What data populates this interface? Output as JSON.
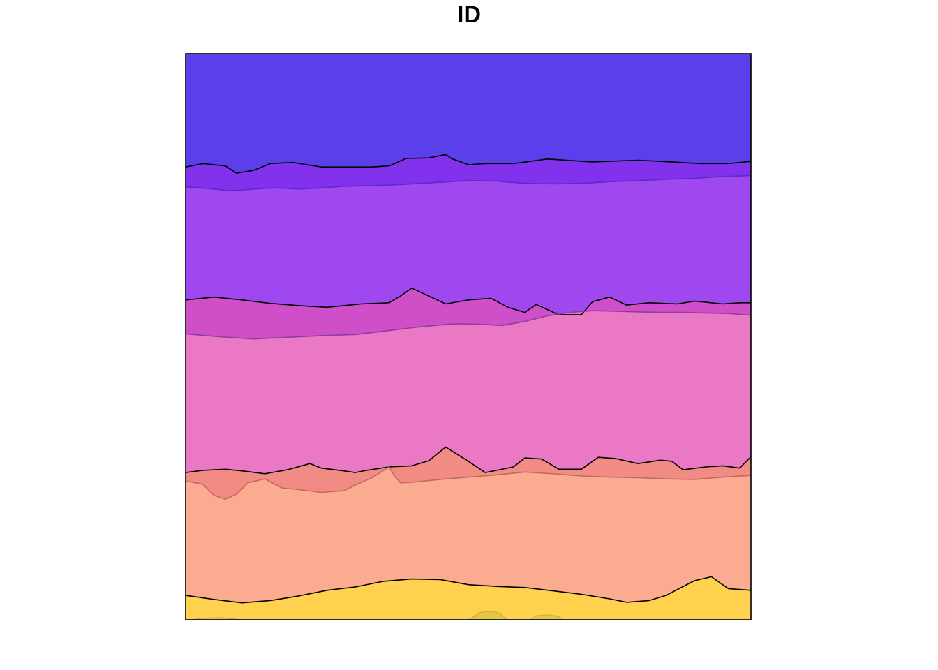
{
  "chart_data": {
    "type": "area",
    "title": "ID",
    "xlabel": "",
    "ylabel": "",
    "xlim": [
      0,
      100
    ],
    "ylim": [
      0,
      100
    ],
    "axes_visible": false,
    "grid": false,
    "legend": "none",
    "layers": [
      {
        "fill": "#5B3FEB",
        "outline": "#000000",
        "lower": {
          "x": [
            0,
            3,
            7,
            9,
            12,
            15,
            19,
            24,
            28,
            33,
            36,
            39,
            43,
            46,
            47,
            50,
            53,
            58,
            64,
            72,
            80,
            86,
            91,
            96,
            100
          ],
          "y": [
            80,
            80.6,
            80.2,
            78.9,
            79.4,
            80.6,
            80.8,
            80.0,
            80.0,
            80.0,
            80.2,
            81.5,
            81.6,
            82.2,
            81.5,
            80.4,
            80.6,
            80.6,
            81.4,
            80.9,
            81.2,
            80.9,
            80.6,
            80.6,
            81.0
          ]
        },
        "upper": {
          "x": [
            0,
            100
          ],
          "y": [
            100,
            100
          ]
        }
      },
      {
        "fill": "#8231EC",
        "outline": "#5A2ACB",
        "lower": {
          "x": [
            0,
            4,
            8,
            12,
            16,
            20,
            24,
            28,
            32,
            36,
            40,
            45,
            50,
            55,
            60,
            65,
            70,
            75,
            80,
            85,
            90,
            95,
            100
          ],
          "y": [
            76.5,
            76.2,
            75.8,
            76.1,
            76.3,
            76.1,
            76.3,
            76.6,
            76.7,
            76.8,
            77.0,
            77.3,
            77.6,
            77.5,
            77.1,
            77.0,
            77.1,
            77.4,
            77.6,
            77.8,
            78.0,
            78.3,
            78.5
          ]
        },
        "upper": {
          "x": [
            0,
            3,
            7,
            9,
            12,
            15,
            19,
            24,
            28,
            33,
            36,
            39,
            43,
            46,
            47,
            50,
            53,
            58,
            64,
            72,
            80,
            86,
            91,
            96,
            100
          ],
          "y": [
            80,
            80.6,
            80.2,
            78.9,
            79.4,
            80.6,
            80.8,
            80.0,
            80.0,
            80.0,
            80.2,
            81.5,
            81.6,
            82.2,
            81.5,
            80.4,
            80.6,
            80.6,
            81.4,
            80.9,
            81.2,
            80.9,
            80.6,
            80.6,
            81.0
          ]
        }
      },
      {
        "fill": "#A048EF",
        "outline": "#000000",
        "lower": {
          "x": [
            0,
            5,
            10,
            15,
            20,
            25,
            28,
            31,
            36,
            38,
            40,
            43,
            46,
            50,
            54,
            57,
            60,
            62,
            66,
            70,
            72,
            75,
            78,
            82,
            87,
            90,
            95,
            98,
            100
          ],
          "y": [
            56.5,
            57.0,
            56.5,
            55.9,
            55.5,
            55.2,
            55.5,
            55.8,
            56.0,
            57.2,
            58.6,
            57.2,
            55.8,
            56.5,
            56.8,
            55.2,
            54.3,
            55.7,
            53.9,
            53.9,
            56.2,
            57.0,
            55.6,
            56.0,
            55.8,
            56.3,
            55.8,
            56.0,
            56.0
          ]
        },
        "upper": {
          "x": [
            0,
            4,
            8,
            12,
            16,
            20,
            24,
            28,
            32,
            36,
            40,
            45,
            50,
            55,
            60,
            65,
            70,
            75,
            80,
            85,
            90,
            95,
            100
          ],
          "y": [
            76.5,
            76.2,
            75.8,
            76.1,
            76.3,
            76.1,
            76.3,
            76.6,
            76.7,
            76.8,
            77.0,
            77.3,
            77.6,
            77.5,
            77.1,
            77.0,
            77.1,
            77.4,
            77.6,
            77.8,
            78.0,
            78.3,
            78.5
          ]
        }
      },
      {
        "fill": "#CF4FC8",
        "outline": "#8E3C9E",
        "lower": {
          "x": [
            0,
            6,
            12,
            18,
            24,
            30,
            36,
            40,
            44,
            48,
            52,
            56,
            60,
            64,
            68,
            72,
            76,
            80,
            84,
            88,
            92,
            96,
            100
          ],
          "y": [
            50.5,
            50.0,
            49.6,
            49.9,
            50.2,
            50.4,
            51.1,
            51.6,
            52.0,
            52.3,
            52.2,
            52.0,
            52.7,
            53.7,
            54.3,
            54.6,
            54.5,
            54.4,
            54.3,
            54.3,
            54.2,
            54.1,
            53.8
          ]
        },
        "upper": {
          "x": [
            0,
            5,
            10,
            15,
            20,
            25,
            28,
            31,
            36,
            38,
            40,
            43,
            46,
            50,
            54,
            57,
            60,
            62,
            66,
            70,
            72,
            75,
            78,
            82,
            87,
            90,
            95,
            98,
            100
          ],
          "y": [
            56.5,
            57.0,
            56.5,
            55.9,
            55.5,
            55.2,
            55.5,
            55.8,
            56.0,
            57.2,
            58.6,
            57.2,
            55.8,
            56.5,
            56.8,
            55.2,
            54.3,
            55.7,
            53.9,
            53.9,
            56.2,
            57.0,
            55.6,
            56.0,
            55.8,
            56.3,
            55.8,
            56.0,
            56.0
          ]
        }
      },
      {
        "fill": "#EA78C5",
        "outline": "#000000",
        "lower": {
          "x": [
            0,
            3,
            7,
            10,
            14,
            18,
            22,
            24,
            28,
            30,
            32,
            36,
            40,
            43,
            46,
            50,
            53,
            58,
            60,
            63,
            66,
            70,
            73,
            76,
            80,
            84,
            86,
            88,
            92,
            95,
            98,
            100
          ],
          "y": [
            26.0,
            26.4,
            26.6,
            26.3,
            25.8,
            26.5,
            27.6,
            26.8,
            26.3,
            26.0,
            26.4,
            27.0,
            27.2,
            28.1,
            30.5,
            28.0,
            26.0,
            27.0,
            28.6,
            28.4,
            26.6,
            26.6,
            28.7,
            28.5,
            27.6,
            28.2,
            28.0,
            26.5,
            27.0,
            27.2,
            26.8,
            28.8
          ]
        },
        "upper": {
          "x": [
            0,
            6,
            12,
            18,
            24,
            30,
            36,
            40,
            44,
            48,
            52,
            56,
            60,
            64,
            68,
            72,
            76,
            80,
            84,
            88,
            92,
            96,
            100
          ],
          "y": [
            50.5,
            50.0,
            49.6,
            49.9,
            50.2,
            50.4,
            51.1,
            51.6,
            52.0,
            52.3,
            52.2,
            52.0,
            52.7,
            53.7,
            54.3,
            54.6,
            54.5,
            54.4,
            54.3,
            54.3,
            54.2,
            54.1,
            53.8
          ]
        }
      },
      {
        "fill": "#F28B83",
        "outline": "#C06A63",
        "lower": {
          "x": [
            0,
            3,
            5,
            7,
            9,
            11,
            14,
            17,
            20,
            24,
            28,
            30,
            33,
            36,
            37,
            38,
            40,
            45,
            50,
            55,
            60,
            65,
            70,
            75,
            80,
            85,
            90,
            95,
            100
          ],
          "y": [
            24.5,
            24.0,
            22.0,
            21.3,
            22.2,
            24.2,
            24.9,
            23.3,
            23.0,
            22.5,
            22.8,
            23.8,
            25.1,
            27.0,
            25.3,
            24.2,
            24.3,
            24.8,
            25.2,
            25.6,
            26.1,
            25.8,
            25.4,
            25.2,
            25.1,
            24.9,
            24.8,
            25.2,
            25.5
          ]
        },
        "upper": {
          "x": [
            0,
            3,
            7,
            10,
            14,
            18,
            22,
            24,
            28,
            30,
            32,
            36,
            40,
            43,
            46,
            50,
            53,
            58,
            60,
            63,
            66,
            70,
            73,
            76,
            80,
            84,
            86,
            88,
            92,
            95,
            98,
            100
          ],
          "y": [
            26.0,
            26.4,
            26.6,
            26.3,
            25.8,
            26.5,
            27.6,
            26.8,
            26.3,
            26.0,
            26.4,
            27.0,
            27.2,
            28.1,
            30.5,
            28.0,
            26.0,
            27.0,
            28.6,
            28.4,
            26.6,
            26.6,
            28.7,
            28.5,
            27.6,
            28.2,
            28.0,
            26.5,
            27.0,
            27.2,
            26.8,
            28.8
          ]
        }
      },
      {
        "fill": "#FBAB90",
        "outline": "#000000",
        "lower": {
          "x": [
            0,
            5,
            10,
            15,
            20,
            25,
            30,
            35,
            40,
            45,
            50,
            55,
            60,
            65,
            70,
            75,
            78,
            82,
            85,
            90,
            93,
            96,
            100
          ],
          "y": [
            4.3,
            3.6,
            3.0,
            3.4,
            4.2,
            5.2,
            5.8,
            6.8,
            7.2,
            7.1,
            6.2,
            5.9,
            5.7,
            5.1,
            4.5,
            3.7,
            3.1,
            3.4,
            4.3,
            6.9,
            7.6,
            5.5,
            5.2
          ]
        },
        "upper": {
          "x": [
            0,
            3,
            5,
            7,
            9,
            11,
            14,
            17,
            20,
            24,
            28,
            30,
            33,
            36,
            37,
            38,
            40,
            45,
            50,
            55,
            60,
            65,
            70,
            75,
            80,
            85,
            90,
            95,
            100
          ],
          "y": [
            24.5,
            24.0,
            22.0,
            21.3,
            22.2,
            24.2,
            24.9,
            23.3,
            23.0,
            22.5,
            22.8,
            23.8,
            25.1,
            27.0,
            25.3,
            24.2,
            24.3,
            24.8,
            25.2,
            25.6,
            26.1,
            25.8,
            25.4,
            25.2,
            25.1,
            24.9,
            24.8,
            25.2,
            25.5
          ]
        }
      },
      {
        "fill": "#FFD14E",
        "outline": "#000000",
        "lower": {
          "x": [
            0,
            100
          ],
          "y": [
            0,
            0
          ]
        },
        "upper": {
          "x": [
            0,
            5,
            10,
            15,
            20,
            25,
            30,
            35,
            40,
            45,
            50,
            55,
            60,
            65,
            70,
            75,
            78,
            82,
            85,
            90,
            93,
            96,
            100
          ],
          "y": [
            4.3,
            3.6,
            3.0,
            3.4,
            4.2,
            5.2,
            5.8,
            6.8,
            7.2,
            7.1,
            6.2,
            5.9,
            5.7,
            5.1,
            4.5,
            3.7,
            3.1,
            3.4,
            4.3,
            6.9,
            7.6,
            5.5,
            5.2
          ]
        }
      }
    ],
    "bottom_patches": [
      {
        "fill": "#E6C640",
        "outline": "#C9AE38",
        "x": [
          1,
          3,
          6,
          8,
          10,
          8,
          6,
          3,
          1
        ],
        "y": [
          0,
          0.3,
          0.4,
          0.2,
          0,
          0,
          0,
          0,
          0
        ]
      },
      {
        "fill": "#E6C640",
        "outline": "#C9AE38",
        "x": [
          50,
          51,
          52,
          54,
          55.5,
          56,
          57,
          56,
          54,
          52,
          51,
          50
        ],
        "y": [
          0,
          0.6,
          1.3,
          1.5,
          1.2,
          0.7,
          0,
          0,
          0,
          0,
          0,
          0
        ]
      },
      {
        "fill": "#E6C640",
        "outline": "#C9AE38",
        "x": [
          61,
          62,
          64,
          66,
          66.5,
          66,
          64,
          62,
          61
        ],
        "y": [
          0,
          0.7,
          0.9,
          0.6,
          0,
          0,
          0,
          0,
          0
        ]
      }
    ]
  }
}
